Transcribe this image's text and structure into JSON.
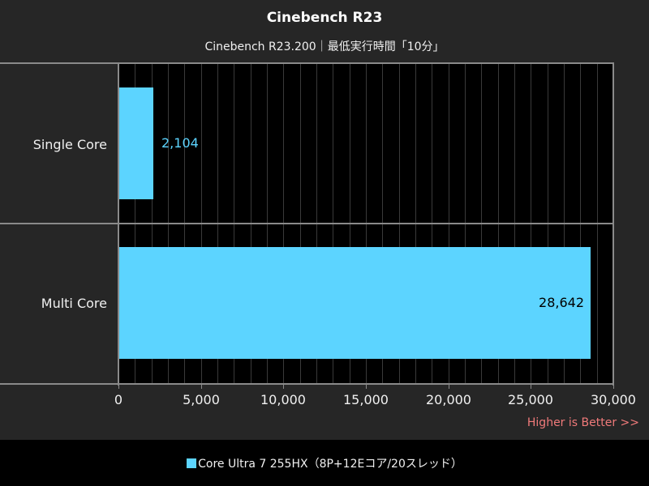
{
  "title": "Cinebench R23",
  "subtitle": "Cinebench R23.200｜最低実行時間「10分」",
  "note": "Higher is Better >>",
  "legend": {
    "items": [
      {
        "label": "Core Ultra 7 255HX（8P+12Eコア/20スレッド）",
        "color": "#5cd4ff"
      }
    ]
  },
  "colors": {
    "bar": "#5cd4ff",
    "background": "#262626",
    "plot_background": "#000000",
    "note": "#f07a7a"
  },
  "chart_data": {
    "type": "bar",
    "orientation": "horizontal",
    "title": "Cinebench R23",
    "subtitle": "Cinebench R23.200｜最低実行時間「10分」",
    "categories": [
      "Single Core",
      "Multi Core"
    ],
    "series": [
      {
        "name": "Core Ultra 7 255HX（8P+12Eコア/20スレッド）",
        "values": [
          2104,
          28642
        ],
        "color": "#5cd4ff"
      }
    ],
    "value_labels": [
      "2,104",
      "28,642"
    ],
    "xlabel": "",
    "ylabel": "",
    "xlim": [
      0,
      30000
    ],
    "x_ticks": [
      0,
      5000,
      10000,
      15000,
      20000,
      25000,
      30000
    ],
    "x_tick_labels": [
      "0",
      "5,000",
      "10,000",
      "15,000",
      "20,000",
      "25,000",
      "30,000"
    ],
    "minor_grid_step": 1000,
    "grid": true,
    "legend_position": "bottom",
    "annotation": "Higher is Better >>"
  }
}
